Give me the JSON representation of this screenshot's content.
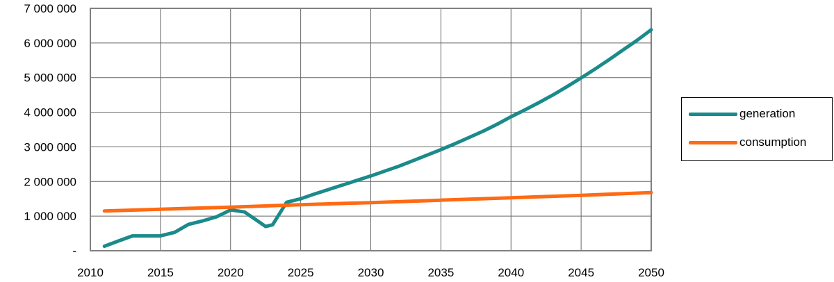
{
  "chart_data": {
    "type": "line",
    "title": "",
    "xlabel": "",
    "ylabel": "",
    "xlim": [
      2010,
      2050
    ],
    "ylim": [
      0,
      7000000
    ],
    "x_ticks": [
      "2010",
      "2015",
      "2020",
      "2025",
      "2030",
      "2035",
      "2040",
      "2045",
      "2050"
    ],
    "y_ticks": [
      {
        "value": 0,
        "label": "-"
      },
      {
        "value": 1000000,
        "label": "1 000 000"
      },
      {
        "value": 2000000,
        "label": "2 000 000"
      },
      {
        "value": 3000000,
        "label": "3 000 000"
      },
      {
        "value": 4000000,
        "label": "4 000 000"
      },
      {
        "value": 5000000,
        "label": "5 000 000"
      },
      {
        "value": 6000000,
        "label": "6 000 000"
      },
      {
        "value": 7000000,
        "label": "7 000 000"
      }
    ],
    "grid": true,
    "legend_position": "right",
    "series": [
      {
        "name": "generation",
        "color": "#1a8a8a",
        "points": [
          [
            2011,
            130000
          ],
          [
            2012,
            280000
          ],
          [
            2013,
            430000
          ],
          [
            2014,
            430000
          ],
          [
            2015,
            430000
          ],
          [
            2016,
            530000
          ],
          [
            2017,
            760000
          ],
          [
            2018,
            860000
          ],
          [
            2019,
            980000
          ],
          [
            2020,
            1180000
          ],
          [
            2021,
            1120000
          ],
          [
            2022,
            840000
          ],
          [
            2022.5,
            700000
          ],
          [
            2023,
            750000
          ],
          [
            2024,
            1400000
          ],
          [
            2025,
            1500000
          ],
          [
            2026,
            1640000
          ],
          [
            2027,
            1770000
          ],
          [
            2028,
            1900000
          ],
          [
            2029,
            2030000
          ],
          [
            2030,
            2160000
          ],
          [
            2031,
            2300000
          ],
          [
            2032,
            2440000
          ],
          [
            2033,
            2600000
          ],
          [
            2034,
            2760000
          ],
          [
            2035,
            2920000
          ],
          [
            2036,
            3090000
          ],
          [
            2037,
            3270000
          ],
          [
            2038,
            3450000
          ],
          [
            2039,
            3650000
          ],
          [
            2040,
            3870000
          ],
          [
            2041,
            4070000
          ],
          [
            2042,
            4280000
          ],
          [
            2043,
            4500000
          ],
          [
            2044,
            4740000
          ],
          [
            2045,
            4990000
          ],
          [
            2046,
            5250000
          ],
          [
            2047,
            5520000
          ],
          [
            2048,
            5800000
          ],
          [
            2049,
            6080000
          ],
          [
            2050,
            6380000
          ]
        ]
      },
      {
        "name": "consumption",
        "color": "#ff6a13",
        "points": [
          [
            2011,
            1150000
          ],
          [
            2015,
            1200000
          ],
          [
            2020,
            1260000
          ],
          [
            2025,
            1330000
          ],
          [
            2030,
            1390000
          ],
          [
            2035,
            1460000
          ],
          [
            2040,
            1530000
          ],
          [
            2045,
            1600000
          ],
          [
            2050,
            1680000
          ]
        ]
      }
    ]
  }
}
